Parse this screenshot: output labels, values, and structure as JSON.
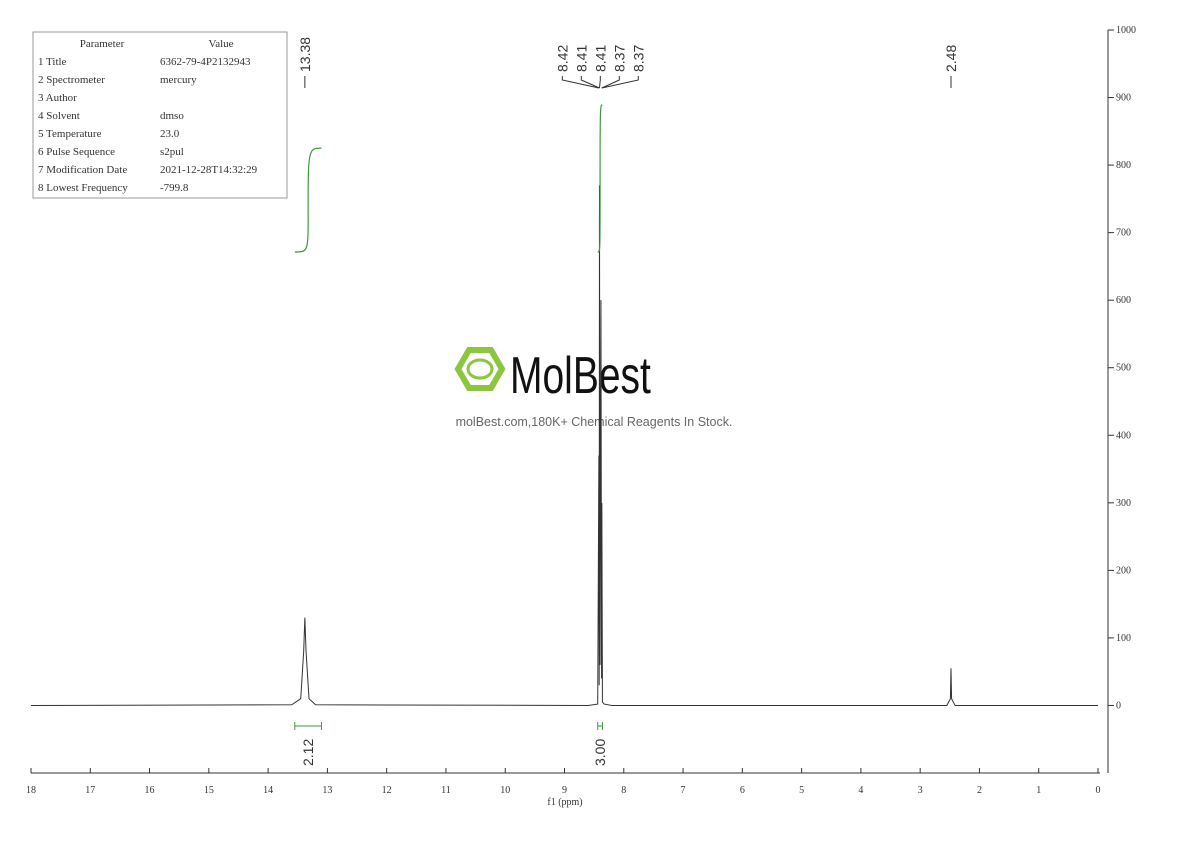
{
  "chart_data": {
    "type": "line",
    "x_label": "f1 (ppm)",
    "x": [
      18,
      13.6,
      13.45,
      13.4,
      13.38,
      13.36,
      13.31,
      13.2,
      8.6,
      8.44,
      8.42,
      8.415,
      8.41,
      8.4,
      8.385,
      8.375,
      8.37,
      8.36,
      8.33,
      8.2,
      2.55,
      2.49,
      2.48,
      2.47,
      2.41,
      0
    ],
    "series": [
      {
        "color": "#333333",
        "values": [
          0,
          1,
          10,
          80,
          130,
          80,
          10,
          1,
          0,
          2,
          370,
          30,
          770,
          60,
          600,
          40,
          300,
          5,
          2,
          0,
          0,
          10,
          55,
          10,
          0,
          0
        ]
      }
    ],
    "xlim": [
      18,
      0
    ],
    "xticks": [
      18,
      17,
      16,
      15,
      14,
      13,
      12,
      11,
      10,
      9,
      8,
      7,
      6,
      5,
      4,
      3,
      2,
      1,
      0
    ],
    "ylim": [
      -100,
      1000
    ],
    "yticks": [
      0,
      100,
      200,
      300,
      400,
      500,
      600,
      700,
      800,
      900,
      1000
    ],
    "peak_labels": [
      13.38,
      8.42,
      8.41,
      8.41,
      8.37,
      8.37,
      2.48
    ],
    "integrals": [
      {
        "from": 13.55,
        "to": 13.1,
        "value": 2.12,
        "label": "2.12"
      },
      {
        "from": 8.44,
        "to": 8.36,
        "value": 3,
        "label": "3.00"
      }
    ],
    "integral_color": "#3c9a3c"
  },
  "parameter_table": {
    "header": [
      "Parameter",
      "Value"
    ],
    "rows": [
      [
        "1 Title",
        "6362-79-4P2132943"
      ],
      [
        "2 Spectrometer",
        "mercury"
      ],
      [
        "3 Author"
      ],
      [
        "4 Solvent",
        "dmso"
      ],
      [
        "5 Temperature",
        "23.0"
      ],
      [
        "6 Pulse Sequence",
        "s2pul"
      ],
      [
        "7 Modification Date",
        "2021-12-28T14:32:29"
      ],
      [
        "8 Lowest Frequency",
        "-799.8"
      ]
    ]
  },
  "watermark": {
    "brand": "MolBest",
    "tagline": "molBest.com,180K+ Chemical Reagents In Stock."
  }
}
